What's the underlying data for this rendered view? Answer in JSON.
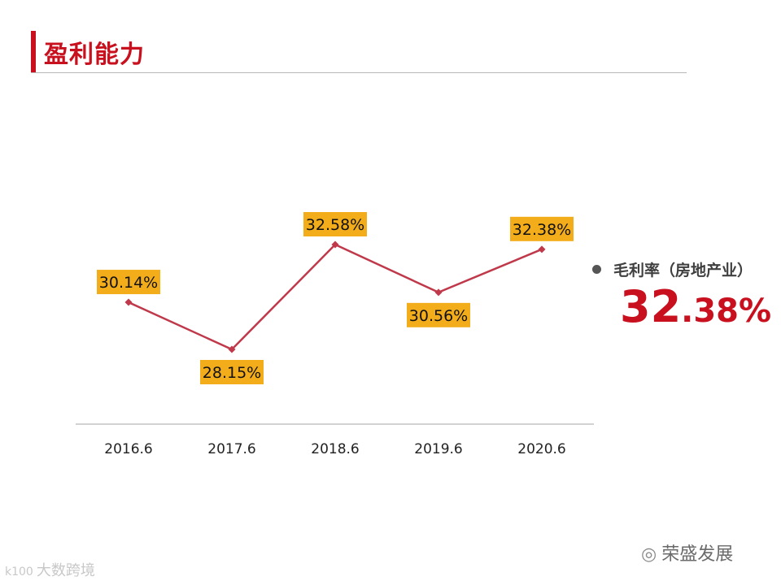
{
  "header": {
    "title": "盈利能力"
  },
  "chart_data": {
    "type": "line",
    "categories": [
      "2016.6",
      "2017.6",
      "2018.6",
      "2019.6",
      "2020.6"
    ],
    "series": [
      {
        "values": [
          30.14,
          28.15,
          32.58,
          30.56,
          32.38
        ]
      }
    ],
    "data_labels": [
      "30.14%",
      "28.15%",
      "32.58%",
      "30.56%",
      "32.38%"
    ],
    "title": "",
    "xlabel": "",
    "ylabel": "",
    "ylim": [
      25,
      34
    ],
    "grid": false,
    "legend": "none",
    "colors": {
      "line": "#c0394b",
      "label_bg": "#f3ad1b",
      "axis": "#a6a6a6"
    }
  },
  "side_metric": {
    "label": "毛利率（房地产业）",
    "value_int": "32",
    "value_dec": ".38%"
  },
  "watermarks": {
    "left_logo": "k100",
    "left_text": "大数跨境",
    "right_icon": "wechat-icon",
    "right_text": "荣盛发展"
  }
}
